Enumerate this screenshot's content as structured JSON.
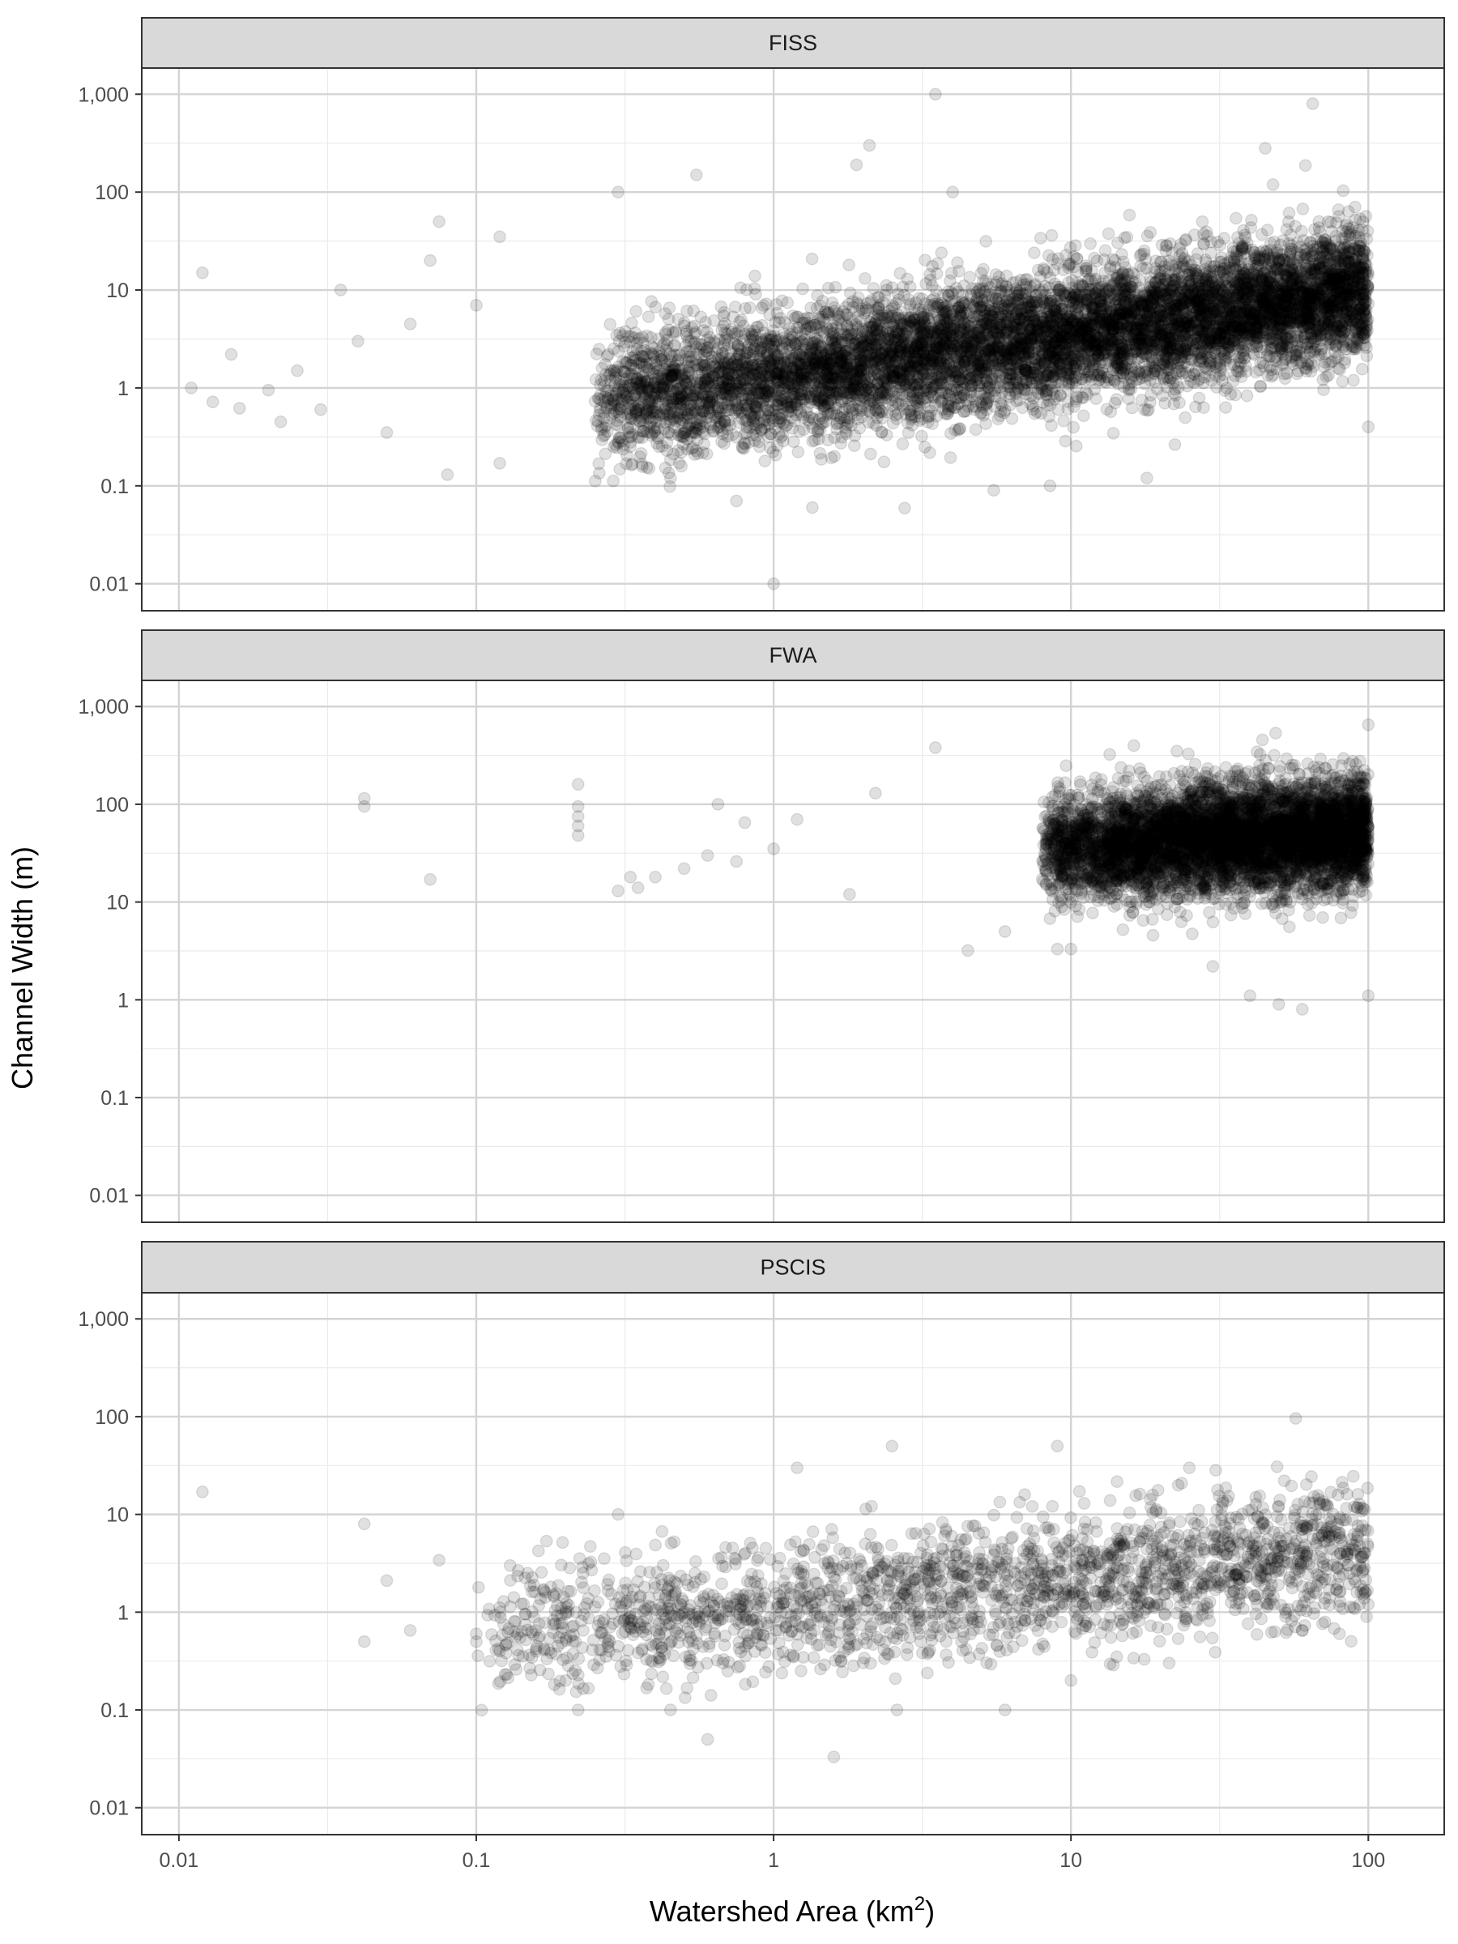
{
  "chart_data": {
    "type": "scatter",
    "facet_layout": "vertical",
    "xlabel": "Watershed Area (km",
    "xlabel_superscript": "2",
    "xlabel_suffix": ")",
    "ylabel": "Channel Width (m)",
    "x_scale": "log10",
    "y_scale": "log10",
    "xlim": [
      0.0075,
      180
    ],
    "ylim": [
      0.0053,
      1850
    ],
    "x_ticks": [
      0.01,
      0.1,
      1,
      10,
      100
    ],
    "x_tick_labels": [
      "0.01",
      "0.1",
      "1",
      "10",
      "100"
    ],
    "y_ticks": [
      0.01,
      0.1,
      1,
      10,
      100,
      1000
    ],
    "y_tick_labels": [
      "0.01",
      "0.1",
      "1",
      "10",
      "100",
      "1,000"
    ],
    "grid": true,
    "point_color": "#000000",
    "point_alpha": 0.12,
    "panels": [
      {
        "strip_label": "FISS",
        "approx_points": 16000,
        "trend": {
          "x_range": [
            0.25,
            100
          ],
          "y_at_x1": 1.3,
          "slope_log": 0.44,
          "spread_log": 0.32
        },
        "points": [
          {
            "x": 0.011,
            "y": 1.0
          },
          {
            "x": 0.012,
            "y": 15
          },
          {
            "x": 0.013,
            "y": 0.72
          },
          {
            "x": 0.015,
            "y": 2.2
          },
          {
            "x": 0.016,
            "y": 0.62
          },
          {
            "x": 0.02,
            "y": 0.95
          },
          {
            "x": 0.022,
            "y": 0.45
          },
          {
            "x": 0.025,
            "y": 1.5
          },
          {
            "x": 0.03,
            "y": 0.6
          },
          {
            "x": 0.035,
            "y": 10
          },
          {
            "x": 0.04,
            "y": 3
          },
          {
            "x": 0.05,
            "y": 0.35
          },
          {
            "x": 0.06,
            "y": 4.5
          },
          {
            "x": 0.07,
            "y": 20
          },
          {
            "x": 0.075,
            "y": 50
          },
          {
            "x": 0.08,
            "y": 0.13
          },
          {
            "x": 0.1,
            "y": 7
          },
          {
            "x": 0.12,
            "y": 0.17
          },
          {
            "x": 0.12,
            "y": 35
          },
          {
            "x": 0.3,
            "y": 100
          },
          {
            "x": 0.45,
            "y": 0.12
          },
          {
            "x": 0.55,
            "y": 150
          },
          {
            "x": 0.75,
            "y": 0.07
          },
          {
            "x": 1.0,
            "y": 0.01
          },
          {
            "x": 1.35,
            "y": 0.06
          },
          {
            "x": 1.9,
            "y": 190
          },
          {
            "x": 2.1,
            "y": 300
          },
          {
            "x": 3.5,
            "y": 1000
          },
          {
            "x": 4.0,
            "y": 100
          },
          {
            "x": 5.5,
            "y": 0.09
          },
          {
            "x": 8.5,
            "y": 0.1
          },
          {
            "x": 18,
            "y": 0.12
          },
          {
            "x": 45,
            "y": 280
          },
          {
            "x": 65,
            "y": 800
          },
          {
            "x": 100,
            "y": 0.4
          }
        ]
      },
      {
        "strip_label": "FWA",
        "approx_points": 11000,
        "trend": {
          "x_range": [
            8,
            100
          ],
          "y_at_x1": 26,
          "slope_log": 0.15,
          "spread_log": 0.28
        },
        "points": [
          {
            "x": 0.042,
            "y": 95
          },
          {
            "x": 0.042,
            "y": 115
          },
          {
            "x": 0.07,
            "y": 17
          },
          {
            "x": 0.22,
            "y": 48
          },
          {
            "x": 0.22,
            "y": 60
          },
          {
            "x": 0.22,
            "y": 75
          },
          {
            "x": 0.22,
            "y": 95
          },
          {
            "x": 0.22,
            "y": 160
          },
          {
            "x": 0.3,
            "y": 13
          },
          {
            "x": 0.33,
            "y": 18
          },
          {
            "x": 0.35,
            "y": 14
          },
          {
            "x": 0.4,
            "y": 18
          },
          {
            "x": 0.5,
            "y": 22
          },
          {
            "x": 0.6,
            "y": 30
          },
          {
            "x": 0.65,
            "y": 100
          },
          {
            "x": 0.75,
            "y": 26
          },
          {
            "x": 0.8,
            "y": 65
          },
          {
            "x": 1.0,
            "y": 35
          },
          {
            "x": 1.2,
            "y": 70
          },
          {
            "x": 1.8,
            "y": 12
          },
          {
            "x": 2.2,
            "y": 130
          },
          {
            "x": 3.5,
            "y": 380
          },
          {
            "x": 4.5,
            "y": 3.2
          },
          {
            "x": 6,
            "y": 5
          },
          {
            "x": 9,
            "y": 3.3
          },
          {
            "x": 10,
            "y": 3.3
          },
          {
            "x": 30,
            "y": 2.2
          },
          {
            "x": 40,
            "y": 1.1
          },
          {
            "x": 50,
            "y": 0.9
          },
          {
            "x": 60,
            "y": 0.8
          },
          {
            "x": 100,
            "y": 1.1
          },
          {
            "x": 100,
            "y": 650
          }
        ]
      },
      {
        "strip_label": "PSCIS",
        "approx_points": 4000,
        "trend": {
          "x_range": [
            0.1,
            100
          ],
          "y_at_x1": 1.1,
          "slope_log": 0.3,
          "spread_log": 0.33
        },
        "points": [
          {
            "x": 0.012,
            "y": 17
          },
          {
            "x": 0.042,
            "y": 8
          },
          {
            "x": 0.042,
            "y": 0.5
          },
          {
            "x": 0.05,
            "y": 2.1
          },
          {
            "x": 0.06,
            "y": 0.65
          },
          {
            "x": 0.075,
            "y": 3.4
          },
          {
            "x": 0.1,
            "y": 0.5
          },
          {
            "x": 0.1,
            "y": 0.6
          },
          {
            "x": 0.12,
            "y": 0.4
          },
          {
            "x": 0.13,
            "y": 3
          },
          {
            "x": 0.16,
            "y": 0.45
          },
          {
            "x": 0.2,
            "y": 0.2
          },
          {
            "x": 0.22,
            "y": 0.1
          },
          {
            "x": 0.3,
            "y": 10
          },
          {
            "x": 0.45,
            "y": 0.1
          },
          {
            "x": 0.6,
            "y": 0.05
          },
          {
            "x": 1.2,
            "y": 30
          },
          {
            "x": 2.5,
            "y": 50
          },
          {
            "x": 2.6,
            "y": 0.1
          },
          {
            "x": 6,
            "y": 0.1
          },
          {
            "x": 9,
            "y": 50
          },
          {
            "x": 10,
            "y": 0.2
          },
          {
            "x": 25,
            "y": 30
          },
          {
            "x": 60,
            "y": 0.65
          },
          {
            "x": 80,
            "y": 0.6
          },
          {
            "x": 100,
            "y": 1.2
          }
        ]
      }
    ]
  }
}
